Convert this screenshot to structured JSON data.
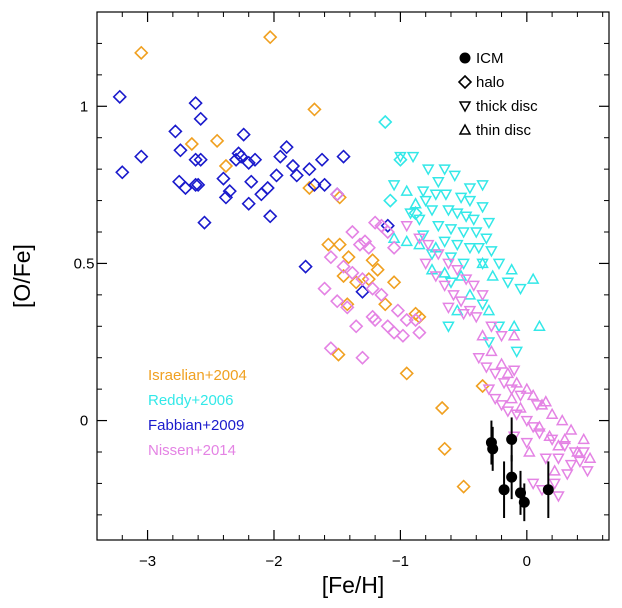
{
  "chart_data": {
    "type": "scatter",
    "xlabel": "[Fe/H]",
    "ylabel": "[O/Fe]",
    "xlim": [
      -3.4,
      0.65
    ],
    "ylim": [
      -0.38,
      1.3
    ],
    "x_ticks": [
      -3,
      -2,
      -1,
      0
    ],
    "x_tick_labels": [
      "−3",
      "−2",
      "−1",
      "0"
    ],
    "y_ticks": [
      0,
      0.5,
      1
    ],
    "y_tick_labels": [
      "0",
      "0.5",
      "1"
    ],
    "grid": false,
    "marker_legend": {
      "placement": "top-right",
      "entries": [
        {
          "label": "ICM",
          "marker": "filled-circle"
        },
        {
          "label": "halo",
          "marker": "diamond"
        },
        {
          "label": "thick disc",
          "marker": "triangle-down"
        },
        {
          "label": "thin disc",
          "marker": "triangle-up"
        }
      ]
    },
    "source_legend": {
      "placement": "bottom-left",
      "entries": [
        {
          "label": "Israelian+2004",
          "color": "#f0a020"
        },
        {
          "label": "Reddy+2006",
          "color": "#33e8e8"
        },
        {
          "label": "Fabbian+2009",
          "color": "#1a1acc"
        },
        {
          "label": "Nissen+2014",
          "color": "#e483e4"
        }
      ]
    },
    "series": [
      {
        "name": "Israelian+2004",
        "color": "#f0a020",
        "marker": "diamond",
        "points": [
          [
            -3.05,
            1.17
          ],
          [
            -2.03,
            1.22
          ],
          [
            -1.68,
            0.99
          ],
          [
            -2.65,
            0.88
          ],
          [
            -2.45,
            0.89
          ],
          [
            -2.38,
            0.81
          ],
          [
            -1.72,
            0.74
          ],
          [
            -1.57,
            0.56
          ],
          [
            -1.48,
            0.56
          ],
          [
            -1.48,
            0.71
          ],
          [
            -1.45,
            0.46
          ],
          [
            -1.41,
            0.52
          ],
          [
            -1.42,
            0.37
          ],
          [
            -1.35,
            0.44
          ],
          [
            -1.25,
            0.45
          ],
          [
            -1.22,
            0.51
          ],
          [
            -1.12,
            0.37
          ],
          [
            -1.18,
            0.48
          ],
          [
            -1.05,
            0.44
          ],
          [
            -0.88,
            0.34
          ],
          [
            -0.85,
            0.33
          ],
          [
            -1.49,
            0.21
          ],
          [
            -0.95,
            0.15
          ],
          [
            -0.35,
            0.11
          ],
          [
            -0.67,
            0.04
          ],
          [
            -0.65,
            -0.09
          ],
          [
            -0.5,
            -0.21
          ]
        ]
      },
      {
        "name": "Reddy+2006",
        "color": "#33e8e8",
        "marker": "triangle-down",
        "points": [
          [
            -1.0,
            0.84
          ],
          [
            -0.9,
            0.84
          ],
          [
            -0.78,
            0.8
          ],
          [
            -0.65,
            0.8
          ],
          [
            -0.57,
            0.78
          ],
          [
            -0.7,
            0.76
          ],
          [
            -0.45,
            0.74
          ],
          [
            -0.35,
            0.75
          ],
          [
            -1.05,
            0.75
          ],
          [
            -0.82,
            0.73
          ],
          [
            -0.72,
            0.72
          ],
          [
            -0.64,
            0.72
          ],
          [
            -0.52,
            0.71
          ],
          [
            -0.45,
            0.7
          ],
          [
            -0.35,
            0.68
          ],
          [
            -0.8,
            0.7
          ],
          [
            -0.75,
            0.67
          ],
          [
            -0.62,
            0.67
          ],
          [
            -0.55,
            0.66
          ],
          [
            -0.48,
            0.65
          ],
          [
            -0.42,
            0.64
          ],
          [
            -0.3,
            0.63
          ],
          [
            -0.92,
            0.66
          ],
          [
            -0.85,
            0.64
          ],
          [
            -0.7,
            0.62
          ],
          [
            -0.6,
            0.61
          ],
          [
            -0.5,
            0.6
          ],
          [
            -0.4,
            0.6
          ],
          [
            -0.32,
            0.58
          ],
          [
            -0.82,
            0.59
          ],
          [
            -0.65,
            0.57
          ],
          [
            -0.55,
            0.56
          ],
          [
            -0.45,
            0.55
          ],
          [
            -0.38,
            0.55
          ],
          [
            -0.28,
            0.54
          ],
          [
            -0.75,
            0.53
          ],
          [
            -0.6,
            0.52
          ],
          [
            -0.5,
            0.5
          ],
          [
            -0.35,
            0.5
          ],
          [
            -0.22,
            0.5
          ],
          [
            -0.15,
            0.44
          ],
          [
            -0.05,
            0.42
          ],
          [
            -0.35,
            0.37
          ],
          [
            -0.22,
            0.3
          ],
          [
            -0.62,
            0.3
          ],
          [
            -0.3,
            0.25
          ],
          [
            -0.08,
            0.22
          ],
          [
            -0.6,
            0.44
          ]
        ]
      },
      {
        "name": "Reddy+2006",
        "color": "#33e8e8",
        "marker": "triangle-up",
        "points": [
          [
            -0.95,
            0.73
          ],
          [
            -0.88,
            0.69
          ],
          [
            -1.05,
            0.58
          ],
          [
            -0.95,
            0.57
          ],
          [
            -0.72,
            0.55
          ],
          [
            -0.65,
            0.47
          ],
          [
            -0.52,
            0.46
          ],
          [
            -0.35,
            0.5
          ],
          [
            -0.27,
            0.46
          ],
          [
            -0.12,
            0.48
          ],
          [
            0.05,
            0.45
          ],
          [
            -0.45,
            0.4
          ],
          [
            -0.3,
            0.35
          ],
          [
            -0.1,
            0.3
          ],
          [
            0.1,
            0.3
          ],
          [
            -0.75,
            0.48
          ],
          [
            -0.55,
            0.35
          ],
          [
            -0.85,
            0.56
          ]
        ]
      },
      {
        "name": "Reddy+2006",
        "color": "#33e8e8",
        "marker": "diamond",
        "points": [
          [
            -1.12,
            0.95
          ],
          [
            -1.0,
            0.83
          ],
          [
            -1.08,
            0.7
          ],
          [
            -0.88,
            0.66
          ]
        ]
      },
      {
        "name": "Fabbian+2009",
        "color": "#1a1acc",
        "marker": "diamond",
        "points": [
          [
            -3.22,
            1.03
          ],
          [
            -3.2,
            0.79
          ],
          [
            -3.05,
            0.84
          ],
          [
            -2.78,
            0.92
          ],
          [
            -2.62,
            1.01
          ],
          [
            -2.58,
            0.96
          ],
          [
            -2.74,
            0.86
          ],
          [
            -2.62,
            0.83
          ],
          [
            -2.58,
            0.83
          ],
          [
            -2.75,
            0.76
          ],
          [
            -2.7,
            0.74
          ],
          [
            -2.62,
            0.75
          ],
          [
            -2.6,
            0.75
          ],
          [
            -2.55,
            0.63
          ],
          [
            -2.4,
            0.77
          ],
          [
            -2.38,
            0.71
          ],
          [
            -2.35,
            0.73
          ],
          [
            -2.3,
            0.83
          ],
          [
            -2.28,
            0.85
          ],
          [
            -2.26,
            0.84
          ],
          [
            -2.24,
            0.91
          ],
          [
            -2.2,
            0.82
          ],
          [
            -2.18,
            0.76
          ],
          [
            -2.2,
            0.69
          ],
          [
            -2.15,
            0.83
          ],
          [
            -2.1,
            0.72
          ],
          [
            -2.05,
            0.74
          ],
          [
            -2.03,
            0.65
          ],
          [
            -1.98,
            0.78
          ],
          [
            -1.95,
            0.84
          ],
          [
            -1.9,
            0.87
          ],
          [
            -1.85,
            0.81
          ],
          [
            -1.82,
            0.78
          ],
          [
            -1.72,
            0.8
          ],
          [
            -1.68,
            0.75
          ],
          [
            -1.62,
            0.83
          ],
          [
            -1.6,
            0.75
          ],
          [
            -1.5,
            0.72
          ],
          [
            -1.45,
            0.84
          ],
          [
            -1.75,
            0.49
          ],
          [
            -1.3,
            0.41
          ],
          [
            -1.1,
            0.62
          ]
        ]
      },
      {
        "name": "Nissen+2014",
        "color": "#e483e4",
        "marker": "diamond",
        "points": [
          [
            -1.5,
            0.72
          ],
          [
            -1.38,
            0.6
          ],
          [
            -1.32,
            0.56
          ],
          [
            -1.28,
            0.57
          ],
          [
            -1.25,
            0.55
          ],
          [
            -1.2,
            0.63
          ],
          [
            -1.15,
            0.62
          ],
          [
            -1.1,
            0.6
          ],
          [
            -1.55,
            0.52
          ],
          [
            -1.45,
            0.49
          ],
          [
            -1.38,
            0.47
          ],
          [
            -1.3,
            0.45
          ],
          [
            -1.22,
            0.42
          ],
          [
            -1.15,
            0.4
          ],
          [
            -1.05,
            0.55
          ],
          [
            -1.6,
            0.42
          ],
          [
            -1.5,
            0.38
          ],
          [
            -1.42,
            0.36
          ],
          [
            -1.35,
            0.3
          ],
          [
            -1.2,
            0.32
          ],
          [
            -1.1,
            0.3
          ],
          [
            -1.02,
            0.35
          ],
          [
            -0.95,
            0.32
          ],
          [
            -0.88,
            0.32
          ],
          [
            -0.85,
            0.28
          ],
          [
            -1.55,
            0.23
          ],
          [
            -1.3,
            0.2
          ],
          [
            -1.22,
            0.33
          ],
          [
            -1.05,
            0.28
          ],
          [
            -0.98,
            0.27
          ]
        ]
      },
      {
        "name": "Nissen+2014",
        "color": "#e483e4",
        "marker": "triangle-down",
        "points": [
          [
            -0.95,
            0.62
          ],
          [
            -0.85,
            0.58
          ],
          [
            -0.78,
            0.56
          ],
          [
            -0.7,
            0.53
          ],
          [
            -0.62,
            0.5
          ],
          [
            -0.55,
            0.48
          ],
          [
            -0.48,
            0.45
          ],
          [
            -0.42,
            0.43
          ],
          [
            -0.35,
            0.4
          ],
          [
            -0.8,
            0.5
          ],
          [
            -0.72,
            0.46
          ],
          [
            -0.65,
            0.43
          ],
          [
            -0.58,
            0.4
          ],
          [
            -0.52,
            0.38
          ],
          [
            -0.45,
            0.35
          ],
          [
            -0.4,
            0.33
          ],
          [
            -0.28,
            0.3
          ],
          [
            -0.2,
            0.27
          ],
          [
            -0.38,
            0.2
          ],
          [
            -0.32,
            0.17
          ],
          [
            -0.25,
            0.15
          ],
          [
            -0.18,
            0.12
          ],
          [
            -0.12,
            0.1
          ],
          [
            -0.05,
            0.08
          ],
          [
            -0.3,
            0.1
          ],
          [
            -0.25,
            0.07
          ],
          [
            -0.2,
            0.05
          ],
          [
            -0.15,
            0.03
          ],
          [
            -0.08,
            0.02
          ],
          [
            0.0,
            0.0
          ],
          [
            0.05,
            -0.02
          ],
          [
            0.1,
            -0.04
          ],
          [
            0.2,
            -0.06
          ],
          [
            0.3,
            -0.08
          ],
          [
            0.38,
            -0.1
          ],
          [
            0.45,
            -0.1
          ],
          [
            -0.1,
            -0.05
          ],
          [
            0.0,
            -0.07
          ],
          [
            0.15,
            -0.12
          ],
          [
            0.25,
            -0.12
          ],
          [
            0.35,
            -0.14
          ],
          [
            0.48,
            -0.16
          ],
          [
            0.05,
            -0.2
          ],
          [
            0.12,
            -0.22
          ],
          [
            0.22,
            -0.2
          ],
          [
            0.25,
            -0.24
          ],
          [
            0.32,
            -0.17
          ],
          [
            0.42,
            -0.13
          ],
          [
            -0.5,
            0.34
          ],
          [
            -0.62,
            0.36
          ],
          [
            -0.1,
            0.16
          ],
          [
            0.08,
            0.05
          ]
        ]
      },
      {
        "name": "Nissen+2014",
        "color": "#e483e4",
        "marker": "triangle-up",
        "points": [
          [
            -0.35,
            0.27
          ],
          [
            -0.28,
            0.22
          ],
          [
            -0.2,
            0.18
          ],
          [
            -0.15,
            0.15
          ],
          [
            -0.08,
            0.12
          ],
          [
            0.0,
            0.1
          ],
          [
            0.05,
            0.08
          ],
          [
            0.12,
            0.05
          ],
          [
            0.2,
            0.02
          ],
          [
            0.28,
            0.0
          ],
          [
            0.35,
            -0.03
          ],
          [
            -0.05,
            0.04
          ],
          [
            0.1,
            -0.02
          ],
          [
            0.18,
            -0.05
          ],
          [
            0.25,
            -0.08
          ],
          [
            0.3,
            -0.06
          ],
          [
            0.4,
            -0.1
          ],
          [
            0.5,
            -0.12
          ],
          [
            0.02,
            -0.1
          ],
          [
            0.22,
            -0.16
          ],
          [
            -0.12,
            0.07
          ],
          [
            0.15,
            0.06
          ],
          [
            0.45,
            -0.06
          ],
          [
            -0.1,
            0.27
          ]
        ]
      },
      {
        "name": "ICM",
        "color": "#000000",
        "marker": "filled-circle",
        "points": [
          [
            -0.28,
            -0.07,
            0.07
          ],
          [
            -0.27,
            -0.09,
            0.07
          ],
          [
            -0.12,
            -0.06,
            0.07
          ],
          [
            -0.12,
            -0.18,
            0.07
          ],
          [
            -0.18,
            -0.22,
            0.09
          ],
          [
            -0.05,
            -0.23,
            0.07
          ],
          [
            -0.02,
            -0.26,
            0.06
          ],
          [
            0.17,
            -0.22,
            0.09
          ]
        ]
      }
    ]
  }
}
